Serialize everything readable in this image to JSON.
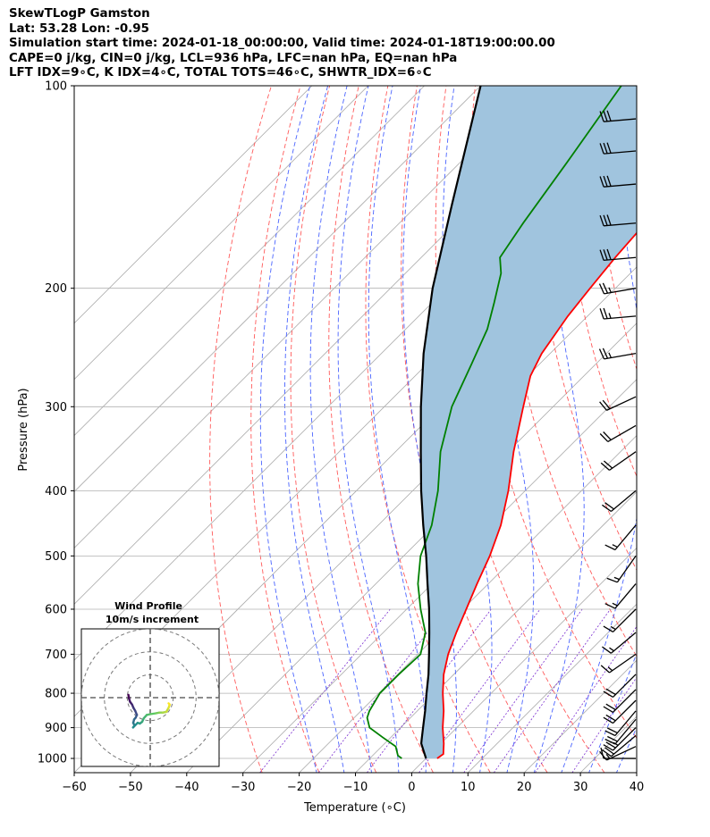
{
  "header": {
    "line1": "SkewTLogP Gamston",
    "line2": "Lat: 53.28   Lon: -0.95",
    "line3": "Simulation start time: 2024-01-18_00:00:00, Valid time: 2024-01-18T19:00:00.00",
    "line4": "CAPE=0 j/kg, CIN=0 j/kg, LCL=936 hPa, LFC=nan hPa, EQ=nan hPa",
    "line5": "LFT IDX=9∘C, K IDX=4∘C, TOTAL TOTS=46∘C, SHWTR_IDX=6∘C"
  },
  "colors": {
    "temperature": "#ff0000",
    "dewpoint": "#008000",
    "parcel": "#000000",
    "cape_shade": "#a0c4de",
    "dry_adiabat": "#ff5a5a",
    "moist_adiabat": "#4a64ff",
    "mixing_ratio": "#7b2fd0",
    "isotherm": "#aaaaaa",
    "grid": "#b0b0b0"
  },
  "chart_data": {
    "type": "line",
    "skewt": {
      "xlabel": "Temperature (∘C)",
      "ylabel": "Pressure (hPa)",
      "xlim": [
        -60,
        40
      ],
      "ylim": [
        1050,
        100
      ],
      "yscale": "log",
      "xticks": [
        -60,
        -50,
        -40,
        -30,
        -20,
        -10,
        0,
        10,
        20,
        30,
        40
      ],
      "yticks": [
        1000,
        900,
        800,
        700,
        600,
        500,
        400,
        300,
        200,
        100
      ],
      "grid": true,
      "series": [
        {
          "key": "temperature",
          "points": [
            [
              1000,
              2
            ],
            [
              985,
              2.3
            ],
            [
              950,
              0.5
            ],
            [
              900,
              -2.5
            ],
            [
              850,
              -5.3
            ],
            [
              800,
              -8.6
            ],
            [
              750,
              -11.8
            ],
            [
              700,
              -14.6
            ],
            [
              650,
              -17
            ],
            [
              600,
              -19.4
            ],
            [
              550,
              -22
            ],
            [
              500,
              -24.7
            ],
            [
              450,
              -28.2
            ],
            [
              400,
              -33
            ],
            [
              350,
              -39
            ],
            [
              300,
              -45.3
            ],
            [
              270,
              -49.5
            ],
            [
              250,
              -51.5
            ],
            [
              220,
              -53.5
            ],
            [
              200,
              -54.5
            ],
            [
              180,
              -55.5
            ],
            [
              150,
              -56.7
            ],
            [
              130,
              -58
            ],
            [
              110,
              -60
            ],
            [
              100,
              -61.5
            ]
          ]
        },
        {
          "key": "dewpoint",
          "points": [
            [
              1000,
              -4.3
            ],
            [
              990,
              -5.5
            ],
            [
              960,
              -7.5
            ],
            [
              930,
              -11.5
            ],
            [
              900,
              -15.5
            ],
            [
              870,
              -17.7
            ],
            [
              850,
              -18.5
            ],
            [
              800,
              -19.8
            ],
            [
              750,
              -19.8
            ],
            [
              700,
              -19.5
            ],
            [
              650,
              -22.5
            ],
            [
              600,
              -27.5
            ],
            [
              550,
              -32.5
            ],
            [
              500,
              -37
            ],
            [
              450,
              -40.5
            ],
            [
              400,
              -45.5
            ],
            [
              350,
              -52
            ],
            [
              300,
              -58
            ],
            [
              260,
              -62
            ],
            [
              230,
              -65.5
            ],
            [
              210,
              -69
            ],
            [
              190,
              -73
            ],
            [
              180,
              -76
            ],
            [
              160,
              -78
            ],
            [
              130,
              -81
            ],
            [
              100,
              -85
            ]
          ]
        },
        {
          "key": "parcel",
          "points": [
            [
              1000,
              0
            ],
            [
              950,
              -3.5
            ],
            [
              936,
              -4.2
            ],
            [
              900,
              -6
            ],
            [
              850,
              -8.6
            ],
            [
              800,
              -11.5
            ],
            [
              750,
              -14.5
            ],
            [
              700,
              -18
            ],
            [
              650,
              -21.8
            ],
            [
              600,
              -26
            ],
            [
              550,
              -30.8
            ],
            [
              500,
              -36
            ],
            [
              450,
              -42
            ],
            [
              400,
              -48.5
            ],
            [
              350,
              -55.5
            ],
            [
              300,
              -63.5
            ],
            [
              250,
              -72.5
            ],
            [
              200,
              -82.5
            ],
            [
              150,
              -94
            ],
            [
              100,
              -110
            ]
          ]
        }
      ],
      "wind_barbs": [
        {
          "p": 1000,
          "speed": 10,
          "dir": 270
        },
        {
          "p": 960,
          "speed": 15,
          "dir": 245
        },
        {
          "p": 925,
          "speed": 20,
          "dir": 230
        },
        {
          "p": 900,
          "speed": 25,
          "dir": 225
        },
        {
          "p": 875,
          "speed": 20,
          "dir": 220
        },
        {
          "p": 850,
          "speed": 20,
          "dir": 220
        },
        {
          "p": 820,
          "speed": 20,
          "dir": 225
        },
        {
          "p": 790,
          "speed": 20,
          "dir": 225
        },
        {
          "p": 750,
          "speed": 20,
          "dir": 225
        },
        {
          "p": 700,
          "speed": 15,
          "dir": 235
        },
        {
          "p": 650,
          "speed": 15,
          "dir": 230
        },
        {
          "p": 600,
          "speed": 15,
          "dir": 225
        },
        {
          "p": 550,
          "speed": 15,
          "dir": 220
        },
        {
          "p": 500,
          "speed": 15,
          "dir": 215
        },
        {
          "p": 450,
          "speed": 15,
          "dir": 220
        },
        {
          "p": 400,
          "speed": 20,
          "dir": 230
        },
        {
          "p": 350,
          "speed": 20,
          "dir": 235
        },
        {
          "p": 320,
          "speed": 20,
          "dir": 240
        },
        {
          "p": 290,
          "speed": 20,
          "dir": 245
        },
        {
          "p": 250,
          "speed": 25,
          "dir": 260
        },
        {
          "p": 220,
          "speed": 25,
          "dir": 265
        },
        {
          "p": 200,
          "speed": 25,
          "dir": 260
        },
        {
          "p": 180,
          "speed": 30,
          "dir": 265
        },
        {
          "p": 160,
          "speed": 30,
          "dir": 265
        },
        {
          "p": 140,
          "speed": 30,
          "dir": 265
        },
        {
          "p": 125,
          "speed": 30,
          "dir": 265
        },
        {
          "p": 112,
          "speed": 30,
          "dir": 265
        }
      ]
    },
    "hodograph": {
      "title_line1": "Wind Profile",
      "title_line2": "10m/s increment",
      "ring_increment": 10,
      "xlim": [
        -30,
        30
      ],
      "ylim": [
        -30,
        30
      ],
      "points": [
        [
          -9.5,
          1.2
        ],
        [
          -9.2,
          -0.5
        ],
        [
          -8.8,
          -1.8
        ],
        [
          -7.9,
          -3
        ],
        [
          -7.3,
          -4.5
        ],
        [
          -6.5,
          -5.8
        ],
        [
          -5.8,
          -7.5
        ],
        [
          -6.3,
          -8.7
        ],
        [
          -7,
          -9.5
        ],
        [
          -7.4,
          -11
        ],
        [
          -6.8,
          -12.2
        ],
        [
          -7.5,
          -13
        ],
        [
          -5.5,
          -11
        ],
        [
          -4.5,
          -11.3
        ],
        [
          -3.5,
          -10.5
        ],
        [
          -2.8,
          -9
        ],
        [
          -1.5,
          -7.5
        ],
        [
          0,
          -7.2
        ],
        [
          2.5,
          -6.8
        ],
        [
          4,
          -6.5
        ],
        [
          5.5,
          -6.5
        ],
        [
          7,
          -6.2
        ],
        [
          8,
          -4.5
        ],
        [
          8.5,
          -3
        ],
        [
          8,
          -2.5
        ]
      ]
    }
  }
}
